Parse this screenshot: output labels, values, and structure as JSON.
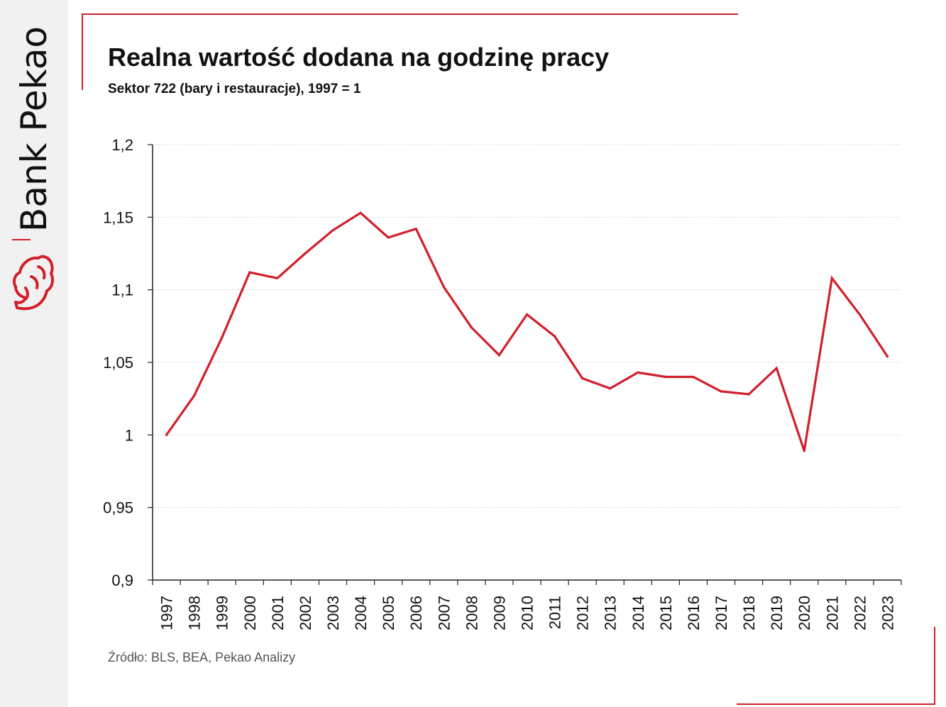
{
  "brand": {
    "name": "Bank Pekao",
    "logo_icon": "pekao-bison-logo-icon",
    "accent_color": "#d11f2a"
  },
  "header": {
    "title": "Realna wartość dodana na godzinę pracy",
    "subtitle": "Sektor 722 (bary i restauracje), 1997 = 1"
  },
  "footer": {
    "source": "Źródło: BLS, BEA, Pekao Analizy"
  },
  "chart_data": {
    "type": "line",
    "title": "Realna wartość dodana na godzinę pracy",
    "subtitle": "Sektor 722 (bary i restauracje), 1997 = 1",
    "xlabel": "",
    "ylabel": "",
    "categories": [
      "1997",
      "1998",
      "1999",
      "2000",
      "2001",
      "2002",
      "2003",
      "2004",
      "2005",
      "2006",
      "2007",
      "2008",
      "2009",
      "2010",
      "2011",
      "2012",
      "2013",
      "2014",
      "2015",
      "2016",
      "2017",
      "2018",
      "2019",
      "2020",
      "2021",
      "2022",
      "2023"
    ],
    "series": [
      {
        "color": "#d11f2a",
        "values": [
          1.0,
          1.027,
          1.067,
          1.112,
          1.108,
          1.125,
          1.141,
          1.153,
          1.136,
          1.142,
          1.102,
          1.074,
          1.055,
          1.083,
          1.068,
          1.039,
          1.032,
          1.043,
          1.04,
          1.04,
          1.03,
          1.028,
          1.046,
          0.989,
          1.108,
          1.083,
          1.054
        ]
      }
    ],
    "ylim": [
      0.9,
      1.2
    ],
    "yticks": [
      {
        "value": 0.9,
        "label": "0,9"
      },
      {
        "value": 0.95,
        "label": "0,95"
      },
      {
        "value": 1.0,
        "label": "1"
      },
      {
        "value": 1.05,
        "label": "1,05"
      },
      {
        "value": 1.1,
        "label": "1,1"
      },
      {
        "value": 1.15,
        "label": "1,15"
      },
      {
        "value": 1.2,
        "label": "1,2"
      }
    ],
    "grid": true,
    "gridline_color": "#d9d9d9",
    "legend": "none"
  }
}
